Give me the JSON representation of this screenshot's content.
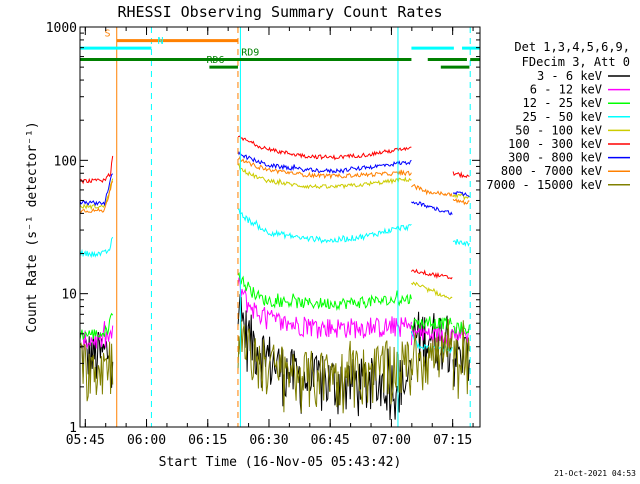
{
  "chart_data": {
    "type": "line",
    "title": "RHESSI Observing Summary Count Rates",
    "xlabel": "Start Time (16-Nov-05 05:43:42)",
    "ylabel": "Count Rate (s⁻¹ detector⁻¹)",
    "footer_date": "21-Oct-2021 04:53",
    "x_unit": "minutes after 05:43:42",
    "xlim": [
      0,
      98
    ],
    "ylim": [
      1,
      1000
    ],
    "y_scale": "log",
    "grid": false,
    "legend_position": "top-right, outside plot",
    "legend_header": [
      "Det 1,3,4,5,6,9,",
      "FDecim 3, Att 0"
    ],
    "x_ticks": [
      {
        "value": 1.3,
        "label": "05:45"
      },
      {
        "value": 16.3,
        "label": "06:00"
      },
      {
        "value": 31.3,
        "label": "06:15"
      },
      {
        "value": 46.3,
        "label": "06:30"
      },
      {
        "value": 61.3,
        "label": "06:45"
      },
      {
        "value": 76.3,
        "label": "07:00"
      },
      {
        "value": 91.3,
        "label": "07:15"
      }
    ],
    "y_ticks": [
      {
        "value": 1,
        "label": "1"
      },
      {
        "value": 10,
        "label": "10"
      },
      {
        "value": 100,
        "label": "100"
      },
      {
        "value": 1000,
        "label": "1000"
      }
    ],
    "flags": [
      {
        "label": "S",
        "color": "#ff8000",
        "y": 790,
        "segments": [
          [
            9,
            38.7
          ]
        ],
        "label_x": 6
      },
      {
        "label": "N",
        "color": "#00ffff",
        "y": 695,
        "segments": [
          [
            0,
            17.5
          ],
          [
            81.2,
            91.6
          ],
          [
            93.6,
            98
          ]
        ],
        "label_x": 19
      },
      {
        "label": "RD9",
        "color": "#008000",
        "y": 570,
        "segments": [
          [
            0,
            81.2
          ],
          [
            85.2,
            94.8
          ],
          [
            95.6,
            98
          ]
        ],
        "label_x": 39.5
      },
      {
        "label": "RD6",
        "color": "#008000",
        "y": 500,
        "segments": [
          [
            31.7,
            38.7
          ],
          [
            88.4,
            95.4
          ]
        ],
        "label_x": 31
      }
    ],
    "vlines": [
      {
        "x": 0,
        "color": "#00ffff",
        "dash": false
      },
      {
        "x": 9,
        "color": "#ff8000",
        "dash": false
      },
      {
        "x": 17.5,
        "color": "#00ffff",
        "dash": true
      },
      {
        "x": 38.7,
        "color": "#ff8000",
        "dash": true
      },
      {
        "x": 39.3,
        "color": "#00ffff",
        "dash": false
      },
      {
        "x": 77.9,
        "color": "#00ffff",
        "dash": false
      },
      {
        "x": 95.6,
        "color": "#00ffff",
        "dash": true
      }
    ],
    "segments": [
      {
        "start": 0,
        "end": 8.2
      },
      {
        "start": 38.7,
        "end": 81.2
      },
      {
        "start": 81.2,
        "end": 91.4
      },
      {
        "start": 91.4,
        "end": 95.4
      }
    ],
    "series": [
      {
        "name": "3 - 6 keV",
        "color": "#000000",
        "noise": 0.5,
        "spike": 0.6,
        "knots": [
          [
            [
              0,
              3.5
            ],
            [
              6,
              3.5
            ],
            [
              8.2,
              4
            ]
          ],
          [
            [
              38.7,
              8
            ],
            [
              41,
              5
            ],
            [
              44,
              4
            ],
            [
              48,
              3
            ],
            [
              55,
              2.3
            ],
            [
              65,
              2.2
            ],
            [
              78,
              2.2
            ],
            [
              81.2,
              2.3
            ]
          ],
          [
            [
              81.2,
              5
            ],
            [
              91.4,
              5
            ]
          ],
          [
            [
              91.4,
              3.5
            ],
            [
              95.4,
              3.5
            ]
          ]
        ]
      },
      {
        "name": "6 - 12 keV",
        "color": "#ff00ff",
        "noise": 0.18,
        "spike": 0.3,
        "knots": [
          [
            [
              0,
              4.5
            ],
            [
              6,
              4.5
            ],
            [
              8.2,
              5
            ]
          ],
          [
            [
              38.7,
              12
            ],
            [
              41,
              8.5
            ],
            [
              44,
              7
            ],
            [
              50,
              6
            ],
            [
              60,
              5.6
            ],
            [
              72,
              5.6
            ],
            [
              81.2,
              5.7
            ]
          ],
          [
            [
              81.2,
              5
            ],
            [
              91.4,
              5
            ]
          ],
          [
            [
              91.4,
              5
            ],
            [
              95.4,
              5
            ]
          ]
        ]
      },
      {
        "name": "12 - 25 keV",
        "color": "#00ff00",
        "noise": 0.1,
        "spike": 0.15,
        "knots": [
          [
            [
              0,
              5
            ],
            [
              6,
              5
            ],
            [
              8.2,
              7
            ]
          ],
          [
            [
              38.7,
              14
            ],
            [
              41,
              11
            ],
            [
              45,
              9
            ],
            [
              55,
              8.5
            ],
            [
              65,
              8.5
            ],
            [
              78,
              9
            ],
            [
              81.2,
              9.2
            ]
          ],
          [
            [
              81.2,
              6
            ],
            [
              91.4,
              6
            ]
          ],
          [
            [
              91.4,
              5.5
            ],
            [
              95.4,
              5.5
            ]
          ]
        ]
      },
      {
        "name": "25 - 50 keV",
        "color": "#00ffff",
        "noise": 0.05,
        "spike": 0.05,
        "knots": [
          [
            [
              0,
              20
            ],
            [
              6,
              20
            ],
            [
              7.5,
              22
            ],
            [
              8.2,
              30
            ]
          ],
          [
            [
              38.7,
              42
            ],
            [
              41,
              36
            ],
            [
              46,
              29
            ],
            [
              55,
              26
            ],
            [
              62,
              25
            ],
            [
              70,
              27
            ],
            [
              78,
              31
            ],
            [
              81.2,
              32
            ]
          ],
          [
            [
              81.2,
              5
            ],
            [
              83,
              4
            ],
            [
              91.4,
              3.8
            ]
          ],
          [
            [
              91.4,
              24
            ],
            [
              95.4,
              24
            ]
          ]
        ]
      },
      {
        "name": "50 - 100 keV",
        "color": "#cccc00",
        "noise": 0.035,
        "spike": 0.05,
        "knots": [
          [
            [
              0,
              45
            ],
            [
              6,
              45
            ],
            [
              8.2,
              75
            ]
          ],
          [
            [
              38.7,
              90
            ],
            [
              41,
              80
            ],
            [
              46,
              70
            ],
            [
              55,
              64
            ],
            [
              62,
              63
            ],
            [
              70,
              66
            ],
            [
              78,
              71
            ],
            [
              81.2,
              72
            ]
          ],
          [
            [
              81.2,
              12
            ],
            [
              91.4,
              9
            ]
          ],
          [
            [
              91.4,
              55
            ],
            [
              95.4,
              52
            ]
          ]
        ]
      },
      {
        "name": "100 - 300 keV",
        "color": "#ff0000",
        "noise": 0.035,
        "spike": 0.05,
        "knots": [
          [
            [
              0,
              70
            ],
            [
              6,
              70
            ],
            [
              7.5,
              80
            ],
            [
              8.2,
              120
            ]
          ],
          [
            [
              38.7,
              150
            ],
            [
              41,
              140
            ],
            [
              46,
              120
            ],
            [
              55,
              108
            ],
            [
              62,
              105
            ],
            [
              70,
              110
            ],
            [
              78,
              120
            ],
            [
              81.2,
              122
            ]
          ],
          [
            [
              81.2,
              15
            ],
            [
              91.4,
              13
            ]
          ],
          [
            [
              91.4,
              80
            ],
            [
              95.4,
              75
            ]
          ]
        ]
      },
      {
        "name": "300 - 800 keV",
        "color": "#0000ff",
        "noise": 0.035,
        "spike": 0.05,
        "knots": [
          [
            [
              0,
              48
            ],
            [
              6,
              48
            ],
            [
              8.2,
              85
            ]
          ],
          [
            [
              38.7,
              115
            ],
            [
              41,
              105
            ],
            [
              46,
              92
            ],
            [
              55,
              85
            ],
            [
              62,
              83
            ],
            [
              70,
              88
            ],
            [
              78,
              95
            ],
            [
              81.2,
              97
            ]
          ],
          [
            [
              81.2,
              50
            ],
            [
              85,
              45
            ],
            [
              91.4,
              40
            ]
          ],
          [
            [
              91.4,
              58
            ],
            [
              95.4,
              55
            ]
          ]
        ]
      },
      {
        "name": "800 - 7000 keV",
        "color": "#ff8000",
        "noise": 0.035,
        "spike": 0.05,
        "knots": [
          [
            [
              0,
              42
            ],
            [
              6,
              42
            ],
            [
              8.2,
              75
            ]
          ],
          [
            [
              38.7,
              105
            ],
            [
              41,
              95
            ],
            [
              46,
              85
            ],
            [
              55,
              78
            ],
            [
              62,
              76
            ],
            [
              70,
              78
            ],
            [
              78,
              80
            ],
            [
              81.2,
              80
            ]
          ],
          [
            [
              81.2,
              65
            ],
            [
              85,
              58
            ],
            [
              91.4,
              55
            ]
          ],
          [
            [
              91.4,
              50
            ],
            [
              95.4,
              48
            ]
          ]
        ]
      },
      {
        "name": "7000 - 15000 keV",
        "color": "#808000",
        "noise": 0.5,
        "spike": 0.6,
        "knots": [
          [
            [
              0,
              3
            ],
            [
              6,
              3
            ],
            [
              8.2,
              3.5
            ]
          ],
          [
            [
              38.7,
              5
            ],
            [
              41,
              3.8
            ],
            [
              44,
              3.2
            ],
            [
              48,
              2.8
            ],
            [
              55,
              2.5
            ],
            [
              65,
              2.5
            ],
            [
              78,
              3
            ],
            [
              81.2,
              3
            ]
          ],
          [
            [
              81.2,
              3.5
            ],
            [
              91.4,
              3.5
            ]
          ],
          [
            [
              91.4,
              3.2
            ],
            [
              95.4,
              3.2
            ]
          ]
        ]
      }
    ]
  }
}
